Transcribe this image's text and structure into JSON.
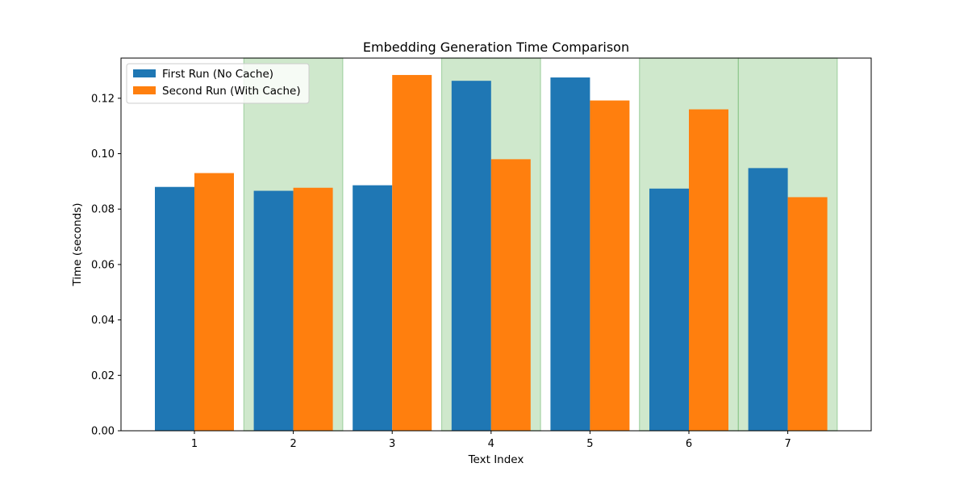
{
  "chart_data": {
    "type": "bar",
    "title": "Embedding Generation Time Comparison",
    "xlabel": "Text Index",
    "ylabel": "Time (seconds)",
    "categories": [
      "1",
      "2",
      "3",
      "4",
      "5",
      "6",
      "7"
    ],
    "series": [
      {
        "name": "First Run (No Cache)",
        "color": "#1f77b4",
        "values": [
          0.088,
          0.0866,
          0.0886,
          0.1263,
          0.1275,
          0.0874,
          0.0948
        ]
      },
      {
        "name": "Second Run (With Cache)",
        "color": "#ff7f0e",
        "values": [
          0.093,
          0.0877,
          0.1284,
          0.098,
          0.1192,
          0.116,
          0.0843
        ]
      }
    ],
    "highlighted_categories": [
      "2",
      "4",
      "6",
      "7"
    ],
    "highlight_color": "#a8d5a2",
    "ylim": [
      0,
      0.1345
    ],
    "yticks": [
      "0.00",
      "0.02",
      "0.04",
      "0.06",
      "0.08",
      "0.10",
      "0.12"
    ],
    "legend_position": "top-left",
    "grid": false
  }
}
